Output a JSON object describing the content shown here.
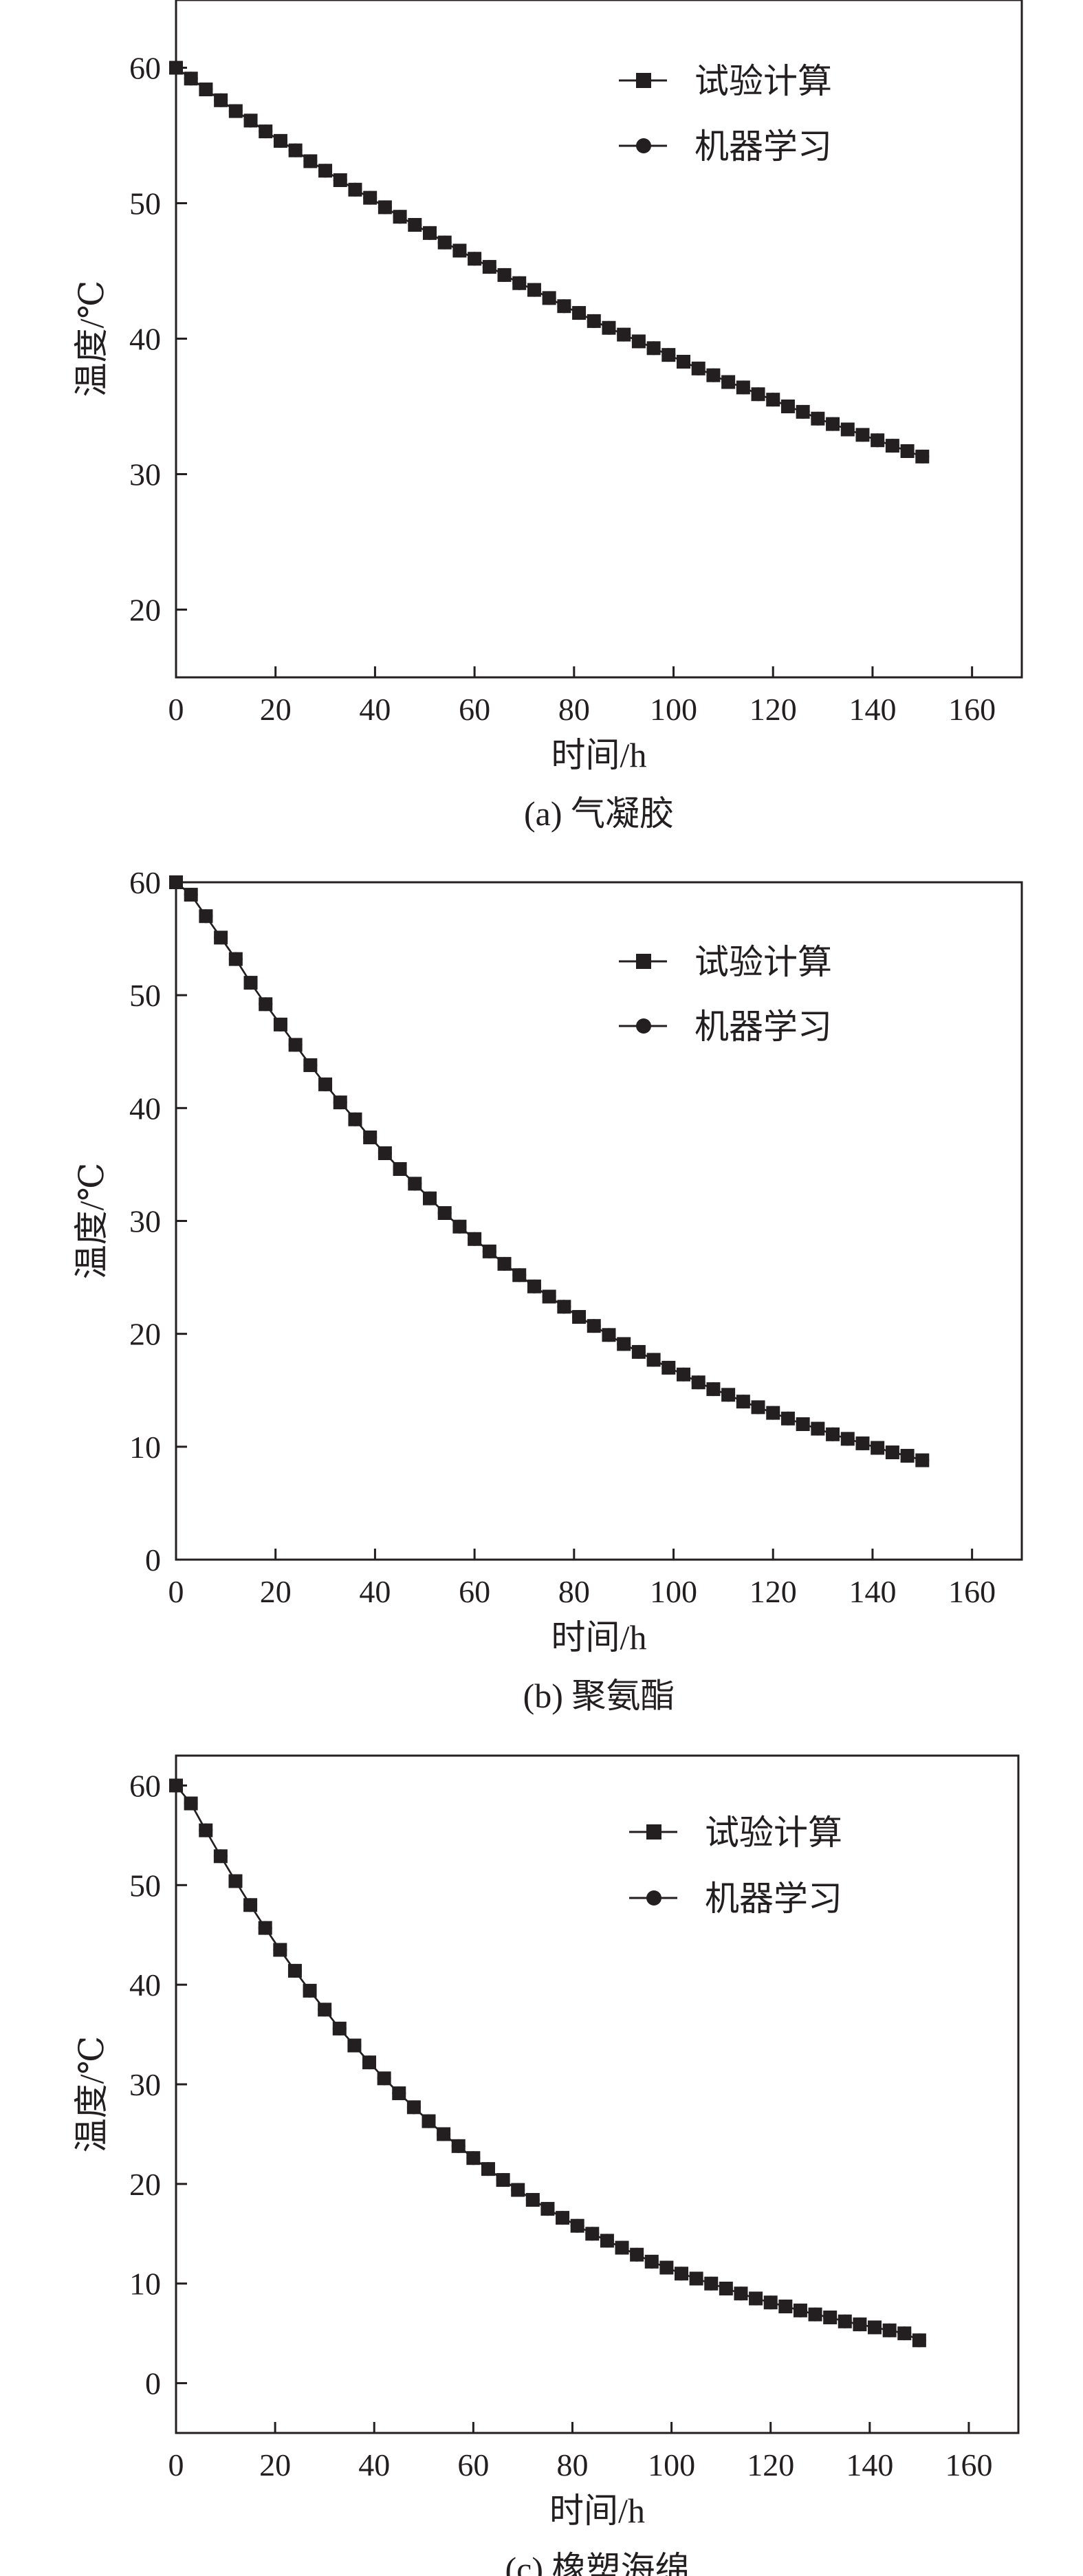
{
  "chart_data": [
    {
      "type": "line",
      "caption": "(a) 气凝胶",
      "xlabel": "时间/h",
      "ylabel": "温度/℃",
      "xlim": [
        0,
        170
      ],
      "ylim": [
        15,
        65
      ],
      "xticks": [
        0,
        20,
        40,
        60,
        80,
        100,
        120,
        140,
        160
      ],
      "yticks": [
        20,
        30,
        40,
        50,
        60
      ],
      "legend_position": "top-right",
      "x": [
        0,
        3,
        6,
        9,
        12,
        15,
        18,
        21,
        24,
        27,
        30,
        33,
        36,
        39,
        42,
        45,
        48,
        51,
        54,
        57,
        60,
        63,
        66,
        69,
        72,
        75,
        78,
        81,
        84,
        87,
        90,
        93,
        96,
        99,
        102,
        105,
        108,
        111,
        114,
        117,
        120,
        123,
        126,
        129,
        132,
        135,
        138,
        141,
        144,
        147,
        150
      ],
      "series": [
        {
          "name": "试验计算",
          "marker": "square",
          "values": [
            60.0,
            59.2,
            58.4,
            57.6,
            56.8,
            56.1,
            55.3,
            54.6,
            53.9,
            53.1,
            52.4,
            51.7,
            51.0,
            50.4,
            49.7,
            49.0,
            48.4,
            47.8,
            47.1,
            46.5,
            45.9,
            45.3,
            44.7,
            44.1,
            43.6,
            43.0,
            42.4,
            41.9,
            41.3,
            40.8,
            40.3,
            39.8,
            39.3,
            38.8,
            38.3,
            37.8,
            37.3,
            36.8,
            36.4,
            35.9,
            35.5,
            35.0,
            34.6,
            34.1,
            33.7,
            33.3,
            32.9,
            32.5,
            32.1,
            31.7,
            31.3
          ]
        },
        {
          "name": "机器学习",
          "marker": "circle",
          "values": [
            60.0,
            59.2,
            58.4,
            57.6,
            56.8,
            56.1,
            55.3,
            54.6,
            53.9,
            53.1,
            52.4,
            51.7,
            51.0,
            50.4,
            49.7,
            49.0,
            48.4,
            47.8,
            47.1,
            46.5,
            45.9,
            45.3,
            44.7,
            44.1,
            43.6,
            43.0,
            42.4,
            41.9,
            41.3,
            40.8,
            40.3,
            39.8,
            39.3,
            38.8,
            38.3,
            37.8,
            37.3,
            36.8,
            36.4,
            35.9,
            35.5,
            35.0,
            34.6,
            34.1,
            33.7,
            33.3,
            32.9,
            32.5,
            32.1,
            31.7,
            31.3
          ]
        }
      ]
    },
    {
      "type": "line",
      "caption": "(b) 聚氨酯",
      "xlabel": "时间/h",
      "ylabel": "温度/℃",
      "xlim": [
        0,
        170
      ],
      "ylim": [
        0,
        60
      ],
      "xticks": [
        0,
        20,
        40,
        60,
        80,
        100,
        120,
        140,
        160
      ],
      "yticks": [
        0,
        10,
        20,
        30,
        40,
        50,
        60
      ],
      "legend_position": "top-right",
      "x": [
        0,
        3,
        6,
        9,
        12,
        15,
        18,
        21,
        24,
        27,
        30,
        33,
        36,
        39,
        42,
        45,
        48,
        51,
        54,
        57,
        60,
        63,
        66,
        69,
        72,
        75,
        78,
        81,
        84,
        87,
        90,
        93,
        96,
        99,
        102,
        105,
        108,
        111,
        114,
        117,
        120,
        123,
        126,
        129,
        132,
        135,
        138,
        141,
        144,
        147,
        150
      ],
      "series": [
        {
          "name": "试验计算",
          "marker": "square",
          "values": [
            60.0,
            58.9,
            57.0,
            55.1,
            53.2,
            51.1,
            49.2,
            47.4,
            45.6,
            43.8,
            42.1,
            40.5,
            39.0,
            37.4,
            36.0,
            34.6,
            33.3,
            32.0,
            30.7,
            29.5,
            28.4,
            27.3,
            26.2,
            25.2,
            24.2,
            23.3,
            22.4,
            21.5,
            20.7,
            19.9,
            19.1,
            18.4,
            17.7,
            17.0,
            16.4,
            15.7,
            15.1,
            14.6,
            14.0,
            13.5,
            13.0,
            12.5,
            12.0,
            11.6,
            11.1,
            10.7,
            10.3,
            9.9,
            9.5,
            9.2,
            8.8
          ]
        },
        {
          "name": "机器学习",
          "marker": "circle",
          "values": [
            60.0,
            58.9,
            57.0,
            55.1,
            53.2,
            51.1,
            49.2,
            47.4,
            45.6,
            43.8,
            42.1,
            40.5,
            39.0,
            37.4,
            36.0,
            34.6,
            33.3,
            32.0,
            30.7,
            29.5,
            28.4,
            27.3,
            26.2,
            25.2,
            24.2,
            23.3,
            22.4,
            21.5,
            20.7,
            19.9,
            19.1,
            18.4,
            17.7,
            17.0,
            16.4,
            15.7,
            15.1,
            14.6,
            14.0,
            13.5,
            13.0,
            12.5,
            12.0,
            11.6,
            11.1,
            10.7,
            10.3,
            9.9,
            9.5,
            9.2,
            8.8
          ]
        }
      ]
    },
    {
      "type": "line",
      "caption": "(c) 橡塑海绵",
      "xlabel": "时间/h",
      "ylabel": "温度/℃",
      "xlim": [
        0,
        170
      ],
      "ylim": [
        -5,
        63
      ],
      "xticks": [
        0,
        20,
        40,
        60,
        80,
        100,
        120,
        140,
        160
      ],
      "yticks": [
        0,
        10,
        20,
        30,
        40,
        50,
        60
      ],
      "legend_position": "top-right",
      "x": [
        0,
        3,
        6,
        9,
        12,
        15,
        18,
        21,
        24,
        27,
        30,
        33,
        36,
        39,
        42,
        45,
        48,
        51,
        54,
        57,
        60,
        63,
        66,
        69,
        72,
        75,
        78,
        81,
        84,
        87,
        90,
        93,
        96,
        99,
        102,
        105,
        108,
        111,
        114,
        117,
        120,
        123,
        126,
        129,
        132,
        135,
        138,
        141,
        144,
        147,
        150
      ],
      "series": [
        {
          "name": "试验计算",
          "marker": "square",
          "values": [
            60.0,
            58.2,
            55.5,
            52.9,
            50.4,
            48.0,
            45.7,
            43.5,
            41.4,
            39.4,
            37.5,
            35.6,
            33.9,
            32.2,
            30.6,
            29.1,
            27.7,
            26.3,
            25.0,
            23.8,
            22.6,
            21.5,
            20.4,
            19.4,
            18.4,
            17.5,
            16.6,
            15.8,
            15.0,
            14.3,
            13.6,
            12.9,
            12.2,
            11.6,
            11.0,
            10.5,
            10.0,
            9.5,
            9.0,
            8.5,
            8.1,
            7.7,
            7.3,
            6.9,
            6.6,
            6.2,
            5.9,
            5.6,
            5.3,
            5.0,
            4.3
          ]
        },
        {
          "name": "机器学习",
          "marker": "circle",
          "values": [
            60.0,
            58.2,
            55.5,
            52.9,
            50.4,
            48.0,
            45.7,
            43.5,
            41.4,
            39.4,
            37.5,
            35.6,
            33.9,
            32.2,
            30.6,
            29.1,
            27.7,
            26.3,
            25.0,
            23.8,
            22.6,
            21.5,
            20.4,
            19.4,
            18.4,
            17.5,
            16.6,
            15.8,
            15.0,
            14.3,
            13.6,
            12.9,
            12.2,
            11.6,
            11.0,
            10.5,
            10.0,
            9.5,
            9.0,
            8.5,
            8.1,
            7.7,
            7.3,
            6.9,
            6.6,
            6.2,
            5.9,
            5.6,
            5.3,
            5.0,
            4.3
          ]
        }
      ]
    }
  ]
}
